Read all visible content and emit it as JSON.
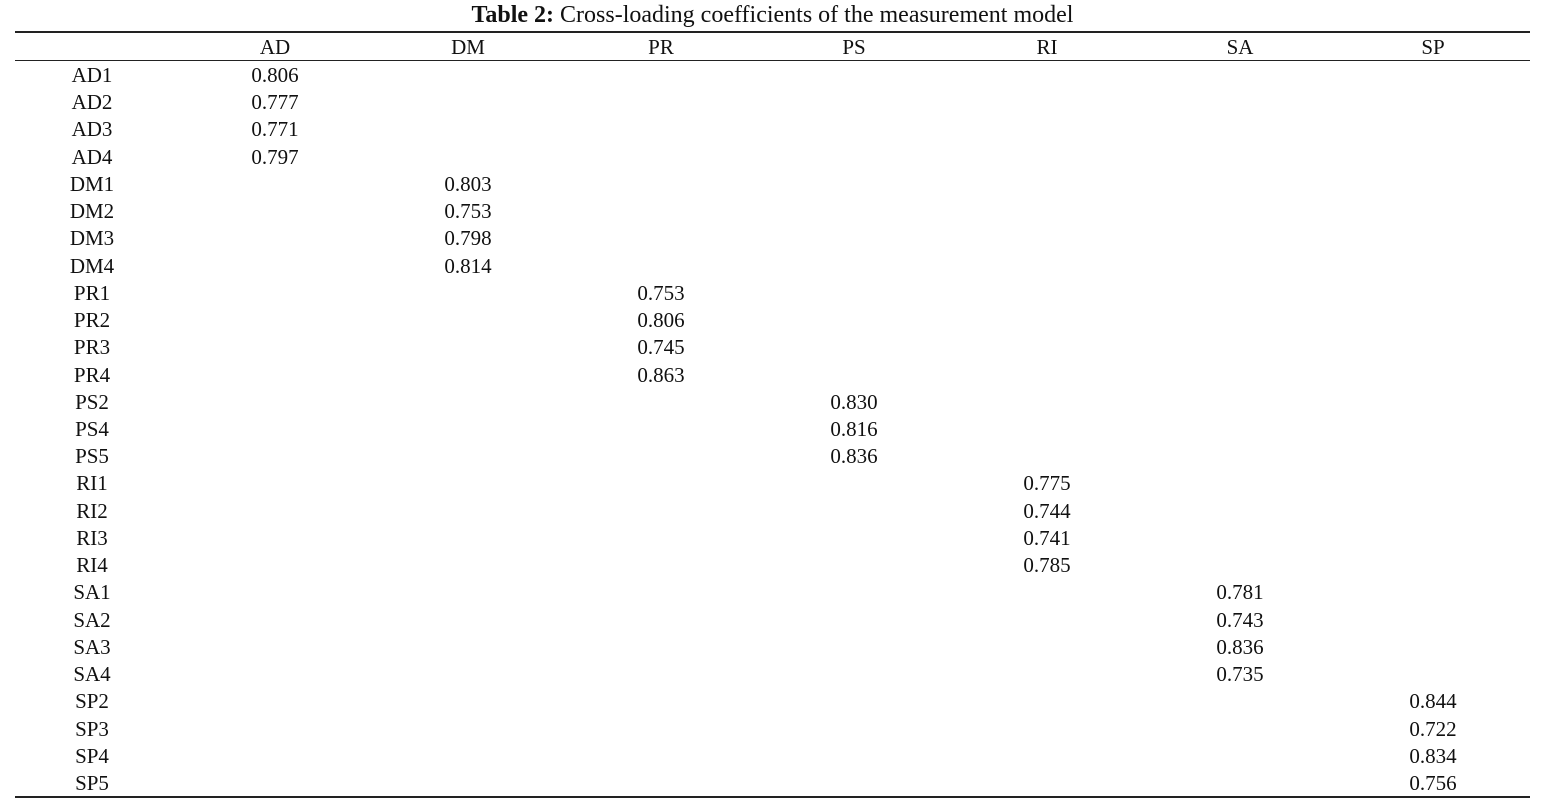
{
  "title": {
    "label": "Table 2:",
    "text": "Cross-loading coefficients of the measurement model"
  },
  "groups": [
    {
      "header": "AD",
      "rows": [
        {
          "label": "AD1",
          "value": "0.806"
        },
        {
          "label": "AD2",
          "value": "0.777"
        },
        {
          "label": "AD3",
          "value": "0.771"
        },
        {
          "label": "AD4",
          "value": "0.797"
        }
      ]
    },
    {
      "header": "DM",
      "rows": [
        {
          "label": "DM1",
          "value": "0.803"
        },
        {
          "label": "DM2",
          "value": "0.753"
        },
        {
          "label": "DM3",
          "value": "0.798"
        },
        {
          "label": "DM4",
          "value": "0.814"
        }
      ]
    },
    {
      "header": "PR",
      "rows": [
        {
          "label": "PR1",
          "value": "0.753"
        },
        {
          "label": "PR2",
          "value": "0.806"
        },
        {
          "label": "PR3",
          "value": "0.745"
        },
        {
          "label": "PR4",
          "value": "0.863"
        }
      ]
    },
    {
      "header": "PS",
      "rows": [
        {
          "label": "PS2",
          "value": "0.830"
        },
        {
          "label": "PS4",
          "value": "0.816"
        },
        {
          "label": "PS5",
          "value": "0.836"
        }
      ]
    },
    {
      "header": "RI",
      "rows": [
        {
          "label": "RI1",
          "value": "0.775"
        },
        {
          "label": "RI2",
          "value": "0.744"
        },
        {
          "label": "RI3",
          "value": "0.741"
        },
        {
          "label": "RI4",
          "value": "0.785"
        }
      ]
    },
    {
      "header": "SA",
      "rows": [
        {
          "label": "SA1",
          "value": "0.781"
        },
        {
          "label": "SA2",
          "value": "0.743"
        },
        {
          "label": "SA3",
          "value": "0.836"
        },
        {
          "label": "SA4",
          "value": "0.735"
        }
      ]
    },
    {
      "header": "SP",
      "rows": [
        {
          "label": "SP2",
          "value": "0.844"
        },
        {
          "label": "SP3",
          "value": "0.722"
        },
        {
          "label": "SP4",
          "value": "0.834"
        },
        {
          "label": "SP5",
          "value": "0.756"
        }
      ]
    }
  ]
}
